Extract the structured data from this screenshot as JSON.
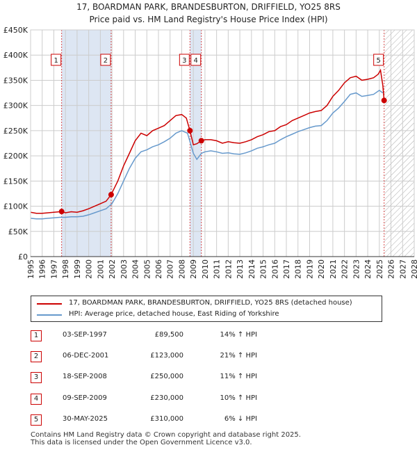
{
  "chart_data": {
    "type": "line",
    "title": "17, BOARDMAN PARK, BRANDESBURTON, DRIFFIELD, YO25 8RS",
    "subtitle": "Price paid vs. HM Land Registry's House Price Index (HPI)",
    "xlim": [
      1995,
      2028
    ],
    "ylim": [
      0,
      450000
    ],
    "y_ticks": [
      0,
      50000,
      100000,
      150000,
      200000,
      250000,
      300000,
      350000,
      400000,
      450000
    ],
    "y_tick_labels": [
      "£0",
      "£50K",
      "£100K",
      "£150K",
      "£200K",
      "£250K",
      "£300K",
      "£350K",
      "£400K",
      "£450K"
    ],
    "x_ticks": [
      "1995",
      "1996",
      "1997",
      "1998",
      "1999",
      "2000",
      "2001",
      "2002",
      "2003",
      "2004",
      "2005",
      "2006",
      "2007",
      "2008",
      "2009",
      "2010",
      "2011",
      "2012",
      "2013",
      "2014",
      "2015",
      "2016",
      "2017",
      "2018",
      "2019",
      "2020",
      "2021",
      "2022",
      "2023",
      "2024",
      "2025",
      "2026",
      "2027",
      "2028"
    ],
    "colors": {
      "property": "#cc0000",
      "hpi": "#6699cc",
      "shade": "#dde6f3",
      "hatch": "#aaaaaa"
    },
    "shaded_periods": [
      [
        1997.67,
        2001.93
      ],
      [
        2008.71,
        2009.69
      ]
    ],
    "hatched_future_from": 2025.41,
    "series": [
      {
        "name": "17, BOARDMAN PARK, BRANDESBURTON, DRIFFIELD, YO25 8RS (detached house)",
        "color": "#cc0000",
        "points": [
          [
            1995.0,
            88000
          ],
          [
            1995.5,
            86000
          ],
          [
            1996.0,
            86000
          ],
          [
            1996.5,
            87000
          ],
          [
            1997.0,
            88000
          ],
          [
            1997.67,
            89500
          ],
          [
            1998.0,
            87000
          ],
          [
            1998.5,
            89000
          ],
          [
            1999.0,
            88000
          ],
          [
            1999.5,
            91000
          ],
          [
            2000.0,
            95000
          ],
          [
            2000.5,
            100000
          ],
          [
            2001.0,
            105000
          ],
          [
            2001.5,
            110000
          ],
          [
            2001.93,
            123000
          ],
          [
            2002.5,
            150000
          ],
          [
            2003.0,
            180000
          ],
          [
            2003.5,
            205000
          ],
          [
            2004.0,
            230000
          ],
          [
            2004.5,
            245000
          ],
          [
            2005.0,
            240000
          ],
          [
            2005.5,
            250000
          ],
          [
            2006.0,
            255000
          ],
          [
            2006.5,
            260000
          ],
          [
            2007.0,
            270000
          ],
          [
            2007.5,
            280000
          ],
          [
            2008.0,
            282000
          ],
          [
            2008.4,
            275000
          ],
          [
            2008.71,
            250000
          ],
          [
            2009.0,
            222000
          ],
          [
            2009.3,
            224000
          ],
          [
            2009.69,
            230000
          ],
          [
            2010.0,
            232000
          ],
          [
            2010.5,
            232000
          ],
          [
            2011.0,
            230000
          ],
          [
            2011.5,
            225000
          ],
          [
            2012.0,
            228000
          ],
          [
            2012.5,
            226000
          ],
          [
            2013.0,
            225000
          ],
          [
            2013.5,
            228000
          ],
          [
            2014.0,
            232000
          ],
          [
            2014.5,
            238000
          ],
          [
            2015.0,
            242000
          ],
          [
            2015.5,
            248000
          ],
          [
            2016.0,
            250000
          ],
          [
            2016.5,
            258000
          ],
          [
            2017.0,
            262000
          ],
          [
            2017.5,
            270000
          ],
          [
            2018.0,
            275000
          ],
          [
            2018.5,
            280000
          ],
          [
            2019.0,
            285000
          ],
          [
            2019.5,
            288000
          ],
          [
            2020.0,
            290000
          ],
          [
            2020.5,
            300000
          ],
          [
            2021.0,
            318000
          ],
          [
            2021.5,
            330000
          ],
          [
            2022.0,
            345000
          ],
          [
            2022.5,
            355000
          ],
          [
            2023.0,
            358000
          ],
          [
            2023.5,
            350000
          ],
          [
            2024.0,
            352000
          ],
          [
            2024.5,
            355000
          ],
          [
            2024.9,
            362000
          ],
          [
            2025.1,
            370000
          ],
          [
            2025.3,
            340000
          ],
          [
            2025.41,
            310000
          ]
        ]
      },
      {
        "name": "HPI: Average price, detached house, East Riding of Yorkshire",
        "color": "#6699cc",
        "points": [
          [
            1995.0,
            76000
          ],
          [
            1995.5,
            75000
          ],
          [
            1996.0,
            75000
          ],
          [
            1996.5,
            76000
          ],
          [
            1997.0,
            77000
          ],
          [
            1997.5,
            78000
          ],
          [
            1998.0,
            78000
          ],
          [
            1998.5,
            79000
          ],
          [
            1999.0,
            79000
          ],
          [
            1999.5,
            80000
          ],
          [
            2000.0,
            83000
          ],
          [
            2000.5,
            87000
          ],
          [
            2001.0,
            91000
          ],
          [
            2001.5,
            95000
          ],
          [
            2002.0,
            105000
          ],
          [
            2002.5,
            125000
          ],
          [
            2003.0,
            150000
          ],
          [
            2003.5,
            175000
          ],
          [
            2004.0,
            195000
          ],
          [
            2004.5,
            208000
          ],
          [
            2005.0,
            212000
          ],
          [
            2005.5,
            218000
          ],
          [
            2006.0,
            222000
          ],
          [
            2006.5,
            228000
          ],
          [
            2007.0,
            235000
          ],
          [
            2007.5,
            245000
          ],
          [
            2008.0,
            250000
          ],
          [
            2008.5,
            245000
          ],
          [
            2009.0,
            205000
          ],
          [
            2009.3,
            193000
          ],
          [
            2009.7,
            205000
          ],
          [
            2010.0,
            208000
          ],
          [
            2010.5,
            210000
          ],
          [
            2011.0,
            208000
          ],
          [
            2011.5,
            205000
          ],
          [
            2012.0,
            206000
          ],
          [
            2012.5,
            204000
          ],
          [
            2013.0,
            203000
          ],
          [
            2013.5,
            206000
          ],
          [
            2014.0,
            210000
          ],
          [
            2014.5,
            215000
          ],
          [
            2015.0,
            218000
          ],
          [
            2015.5,
            222000
          ],
          [
            2016.0,
            225000
          ],
          [
            2016.5,
            232000
          ],
          [
            2017.0,
            238000
          ],
          [
            2017.5,
            243000
          ],
          [
            2018.0,
            248000
          ],
          [
            2018.5,
            252000
          ],
          [
            2019.0,
            256000
          ],
          [
            2019.5,
            259000
          ],
          [
            2020.0,
            260000
          ],
          [
            2020.5,
            270000
          ],
          [
            2021.0,
            285000
          ],
          [
            2021.5,
            295000
          ],
          [
            2022.0,
            308000
          ],
          [
            2022.5,
            322000
          ],
          [
            2023.0,
            325000
          ],
          [
            2023.5,
            318000
          ],
          [
            2024.0,
            320000
          ],
          [
            2024.5,
            322000
          ],
          [
            2025.0,
            330000
          ],
          [
            2025.3,
            325000
          ]
        ]
      }
    ],
    "sale_markers": [
      {
        "label": "1",
        "x": 1997.67,
        "y": 89500
      },
      {
        "label": "2",
        "x": 2001.93,
        "y": 123000
      },
      {
        "label": "3",
        "x": 2008.71,
        "y": 250000
      },
      {
        "label": "4",
        "x": 2009.69,
        "y": 230000
      },
      {
        "label": "5",
        "x": 2025.41,
        "y": 310000
      }
    ]
  },
  "legend": {
    "property_label": "17, BOARDMAN PARK, BRANDESBURTON, DRIFFIELD, YO25 8RS (detached house)",
    "hpi_label": "HPI: Average price, detached house, East Riding of Yorkshire"
  },
  "sales": [
    {
      "num": "1",
      "date": "03-SEP-1997",
      "price": "£89,500",
      "hpi": "14% ↑ HPI"
    },
    {
      "num": "2",
      "date": "06-DEC-2001",
      "price": "£123,000",
      "hpi": "21% ↑ HPI"
    },
    {
      "num": "3",
      "date": "18-SEP-2008",
      "price": "£250,000",
      "hpi": "11% ↑ HPI"
    },
    {
      "num": "4",
      "date": "09-SEP-2009",
      "price": "£230,000",
      "hpi": "10% ↑ HPI"
    },
    {
      "num": "5",
      "date": "30-MAY-2025",
      "price": "£310,000",
      "hpi": "6% ↓ HPI"
    }
  ],
  "footer": {
    "line1": "Contains HM Land Registry data © Crown copyright and database right 2025.",
    "line2": "This data is licensed under the Open Government Licence v3.0."
  }
}
